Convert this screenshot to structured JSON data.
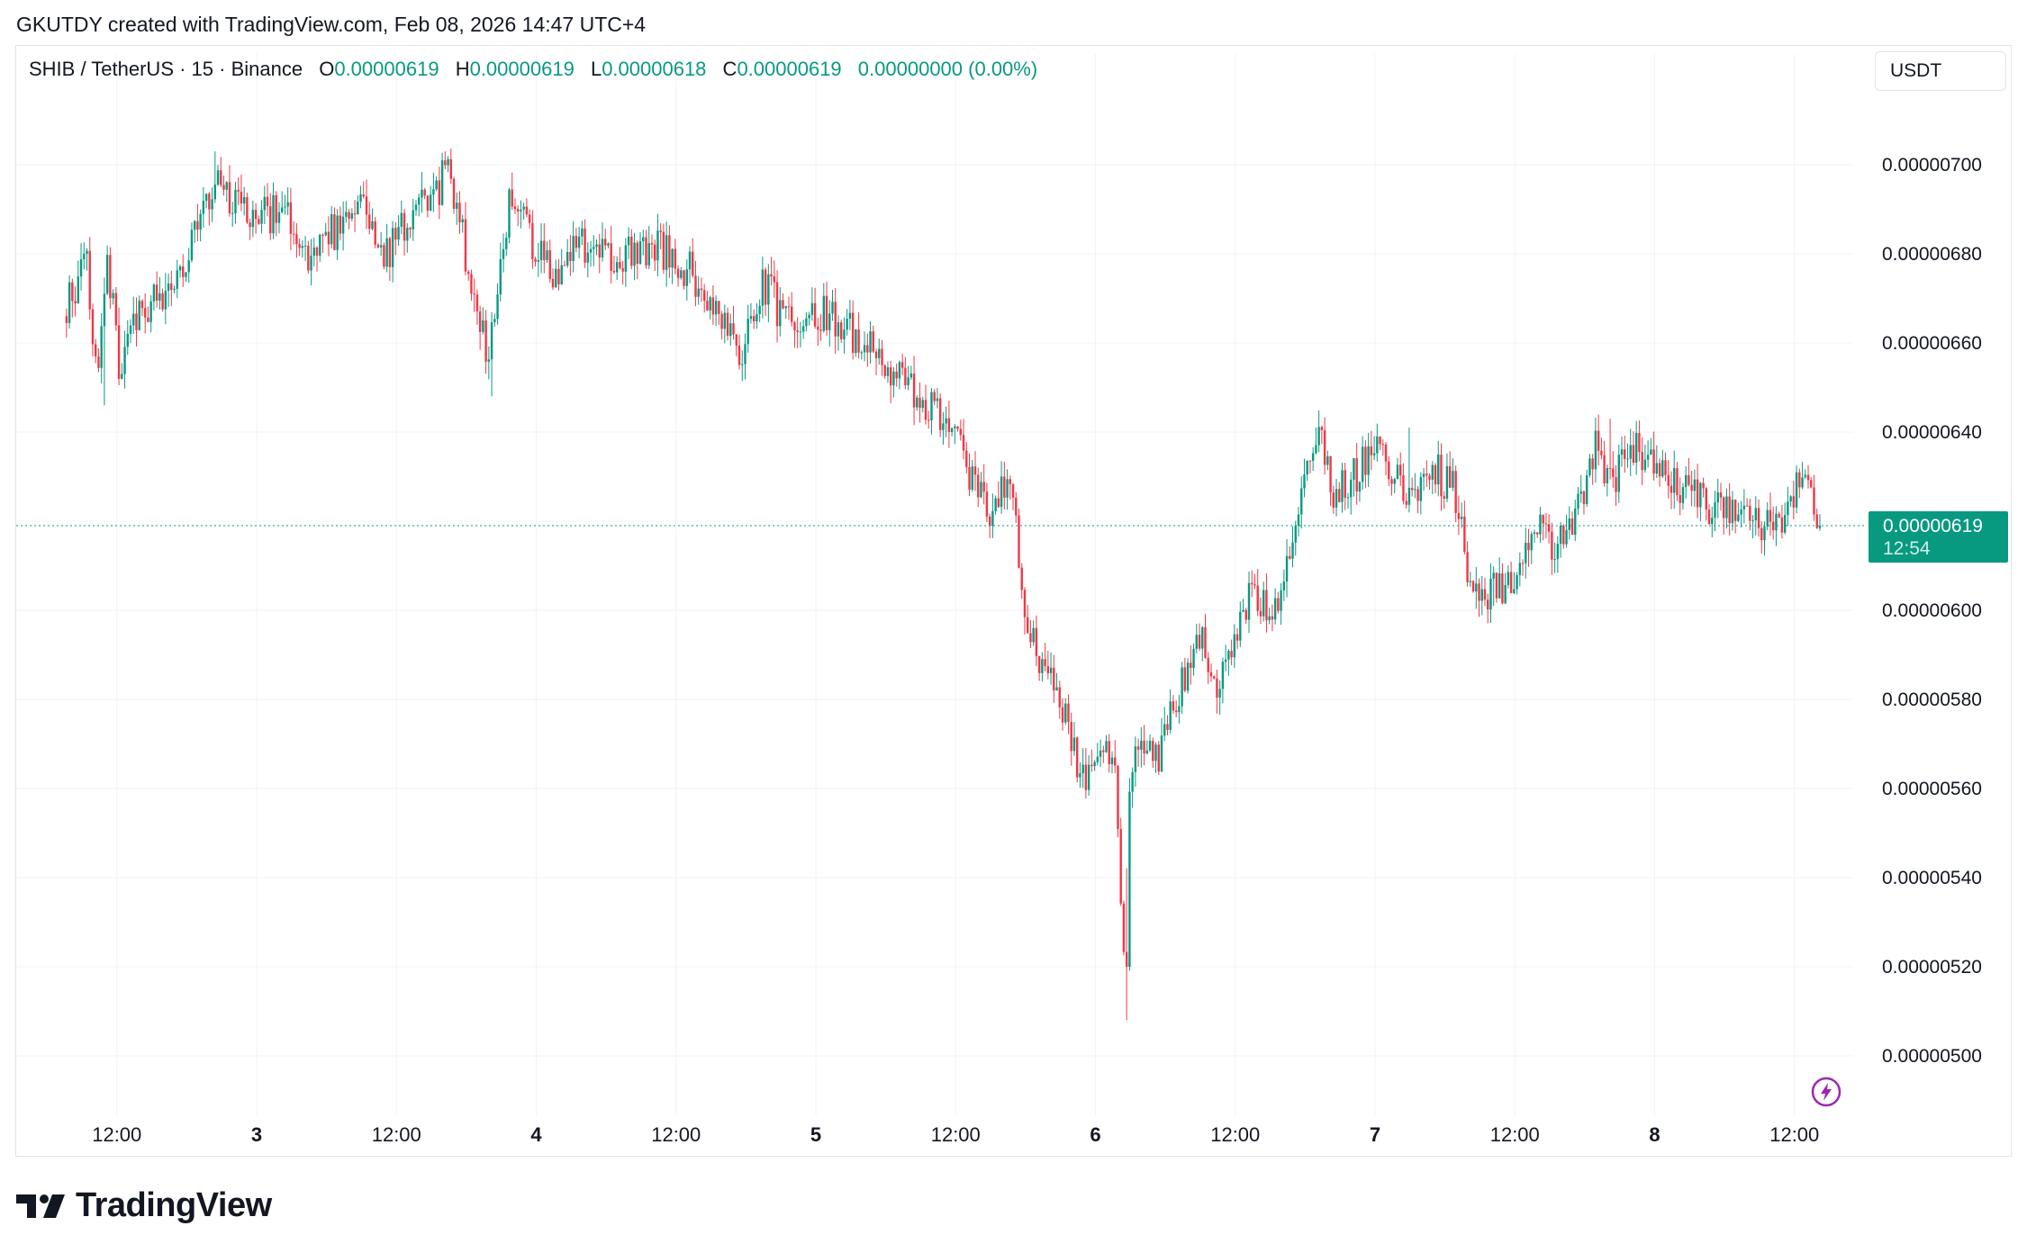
{
  "header": {
    "text": "GKUTDY created with TradingView.com, Feb 08, 2026 14:47 UTC+4"
  },
  "legend": {
    "symbol": "SHIB / TetherUS · 15 · Binance",
    "open_label": "O",
    "open": "0.00000619",
    "high_label": "H",
    "high": "0.00000619",
    "low_label": "L",
    "low": "0.00000618",
    "close_label": "C",
    "close": "0.00000619",
    "change": "0.00000000 (0.00%)"
  },
  "currency": "USDT",
  "last_price": {
    "value": "0.00000619",
    "countdown": "12:54"
  },
  "brand": {
    "name": "TradingView",
    "icon": "tradingview-logo-icon"
  },
  "icons": {
    "alert": "lightning-icon"
  },
  "colors": {
    "up": "#089981",
    "down": "#f23645",
    "grid": "#f0f3fa",
    "accent": "#9c27b0"
  },
  "chart_data": {
    "type": "candlestick",
    "title": "SHIB / TetherUS · 15 · Binance",
    "interval": "15",
    "ylim": [
      4.95,
      7.18
    ],
    "y_unit": "1e-6 USDT",
    "y_ticks": [
      "0.00000700",
      "0.00000680",
      "0.00000660",
      "0.00000640",
      "0.00000620",
      "0.00000600",
      "0.00000580",
      "0.00000560",
      "0.00000540",
      "0.00000520",
      "0.00000500"
    ],
    "y_tick_values": [
      7.0,
      6.8,
      6.6,
      6.4,
      6.2,
      6.0,
      5.8,
      5.6,
      5.4,
      5.2,
      5.0
    ],
    "x_ticks": [
      "12:00",
      "3",
      "12:00",
      "4",
      "12:00",
      "5",
      "12:00",
      "6",
      "12:00",
      "7",
      "12:00",
      "8",
      "12:00"
    ],
    "x_tick_days": [
      1.5,
      2.0,
      2.5,
      3.0,
      3.5,
      4.0,
      4.5,
      5.0,
      5.5,
      6.0,
      6.5,
      7.0,
      7.5
    ],
    "x_bold_ticks": [
      "3",
      "4",
      "5",
      "6",
      "7",
      "8"
    ],
    "x_range_days": [
      1.32,
      8.38
    ],
    "last_price": 6.19,
    "price_path": [
      [
        1.32,
        6.66
      ],
      [
        1.4,
        6.8
      ],
      [
        1.44,
        6.5
      ],
      [
        1.48,
        6.78
      ],
      [
        1.52,
        6.52
      ],
      [
        1.56,
        6.64
      ],
      [
        1.62,
        6.68
      ],
      [
        1.72,
        6.75
      ],
      [
        1.8,
        6.85
      ],
      [
        1.86,
        6.97
      ],
      [
        1.92,
        6.92
      ],
      [
        2.0,
        6.9
      ],
      [
        2.12,
        6.88
      ],
      [
        2.2,
        6.8
      ],
      [
        2.3,
        6.86
      ],
      [
        2.4,
        6.9
      ],
      [
        2.46,
        6.79
      ],
      [
        2.56,
        6.88
      ],
      [
        2.64,
        6.92
      ],
      [
        2.7,
        7.0
      ],
      [
        2.76,
        6.79
      ],
      [
        2.84,
        6.56
      ],
      [
        2.92,
        6.95
      ],
      [
        3.0,
        6.82
      ],
      [
        3.08,
        6.74
      ],
      [
        3.16,
        6.83
      ],
      [
        3.3,
        6.8
      ],
      [
        3.46,
        6.81
      ],
      [
        3.56,
        6.76
      ],
      [
        3.66,
        6.66
      ],
      [
        3.74,
        6.57
      ],
      [
        3.82,
        6.74
      ],
      [
        3.9,
        6.65
      ],
      [
        4.0,
        6.68
      ],
      [
        4.1,
        6.64
      ],
      [
        4.2,
        6.6
      ],
      [
        4.3,
        6.52
      ],
      [
        4.4,
        6.46
      ],
      [
        4.48,
        6.44
      ],
      [
        4.56,
        6.3
      ],
      [
        4.64,
        6.22
      ],
      [
        4.7,
        6.32
      ],
      [
        4.76,
        6.0
      ],
      [
        4.82,
        5.86
      ],
      [
        4.9,
        5.78
      ],
      [
        4.96,
        5.62
      ],
      [
        5.04,
        5.7
      ],
      [
        5.08,
        5.62
      ],
      [
        5.11,
        5.22
      ],
      [
        5.13,
        5.6
      ],
      [
        5.18,
        5.72
      ],
      [
        5.24,
        5.68
      ],
      [
        5.3,
        5.8
      ],
      [
        5.38,
        5.95
      ],
      [
        5.44,
        5.84
      ],
      [
        5.5,
        5.9
      ],
      [
        5.56,
        6.02
      ],
      [
        5.64,
        6.0
      ],
      [
        5.7,
        6.1
      ],
      [
        5.76,
        6.3
      ],
      [
        5.82,
        6.4
      ],
      [
        5.86,
        6.25
      ],
      [
        5.94,
        6.3
      ],
      [
        6.0,
        6.38
      ],
      [
        6.08,
        6.3
      ],
      [
        6.14,
        6.26
      ],
      [
        6.22,
        6.32
      ],
      [
        6.3,
        6.26
      ],
      [
        6.34,
        6.1
      ],
      [
        6.4,
        6.04
      ],
      [
        6.48,
        6.05
      ],
      [
        6.54,
        6.1
      ],
      [
        6.6,
        6.2
      ],
      [
        6.66,
        6.13
      ],
      [
        6.74,
        6.24
      ],
      [
        6.8,
        6.36
      ],
      [
        6.86,
        6.3
      ],
      [
        6.94,
        6.36
      ],
      [
        7.0,
        6.33
      ],
      [
        7.08,
        6.29
      ],
      [
        7.16,
        6.26
      ],
      [
        7.24,
        6.22
      ],
      [
        7.32,
        6.2
      ],
      [
        7.4,
        6.2
      ],
      [
        7.48,
        6.22
      ],
      [
        7.52,
        6.3
      ],
      [
        7.56,
        6.26
      ],
      [
        7.6,
        6.19
      ]
    ],
    "notable_wicks": [
      {
        "day": 1.85,
        "high": 7.03
      },
      {
        "day": 2.67,
        "high": 7.03
      },
      {
        "day": 2.84,
        "low": 6.48
      },
      {
        "day": 1.46,
        "low": 6.46
      },
      {
        "day": 5.11,
        "low": 5.08
      },
      {
        "day": 5.11,
        "close": 5.2
      },
      {
        "day": 5.82,
        "high": 6.42
      },
      {
        "day": 6.12,
        "high": 6.41
      },
      {
        "day": 6.84,
        "high": 6.43
      },
      {
        "day": 6.42,
        "low": 6.01
      }
    ]
  }
}
